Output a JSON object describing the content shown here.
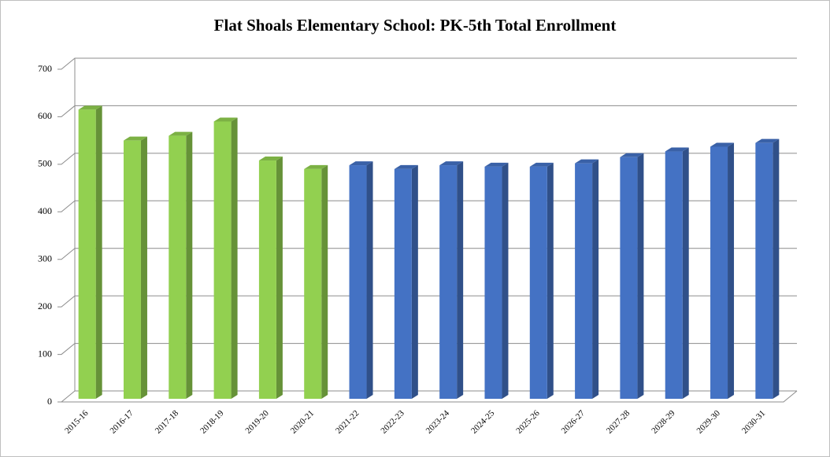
{
  "chart_data": {
    "type": "bar",
    "title": "Flat Shoals Elementary School: PK-5th Total Enrollment",
    "categories": [
      "2015-16",
      "2016-17",
      "2017-18",
      "2018-19",
      "2019-20",
      "2020-21",
      "2021-22",
      "2022-23",
      "2023-24",
      "2024-25",
      "2025-26",
      "2026-27",
      "2027-28",
      "2028-29",
      "2029-30",
      "2030-31"
    ],
    "values": [
      615,
      550,
      560,
      590,
      508,
      490,
      498,
      490,
      498,
      495,
      495,
      502,
      515,
      527,
      537,
      545
    ],
    "colors": [
      "#92d050",
      "#92d050",
      "#92d050",
      "#92d050",
      "#92d050",
      "#92d050",
      "#4472c4",
      "#4472c4",
      "#4472c4",
      "#4472c4",
      "#4472c4",
      "#4472c4",
      "#4472c4",
      "#4472c4",
      "#4472c4",
      "#4472c4"
    ],
    "ylim": [
      0,
      700
    ],
    "yticks": [
      0,
      100,
      200,
      300,
      400,
      500,
      600,
      700
    ],
    "grid": true
  }
}
